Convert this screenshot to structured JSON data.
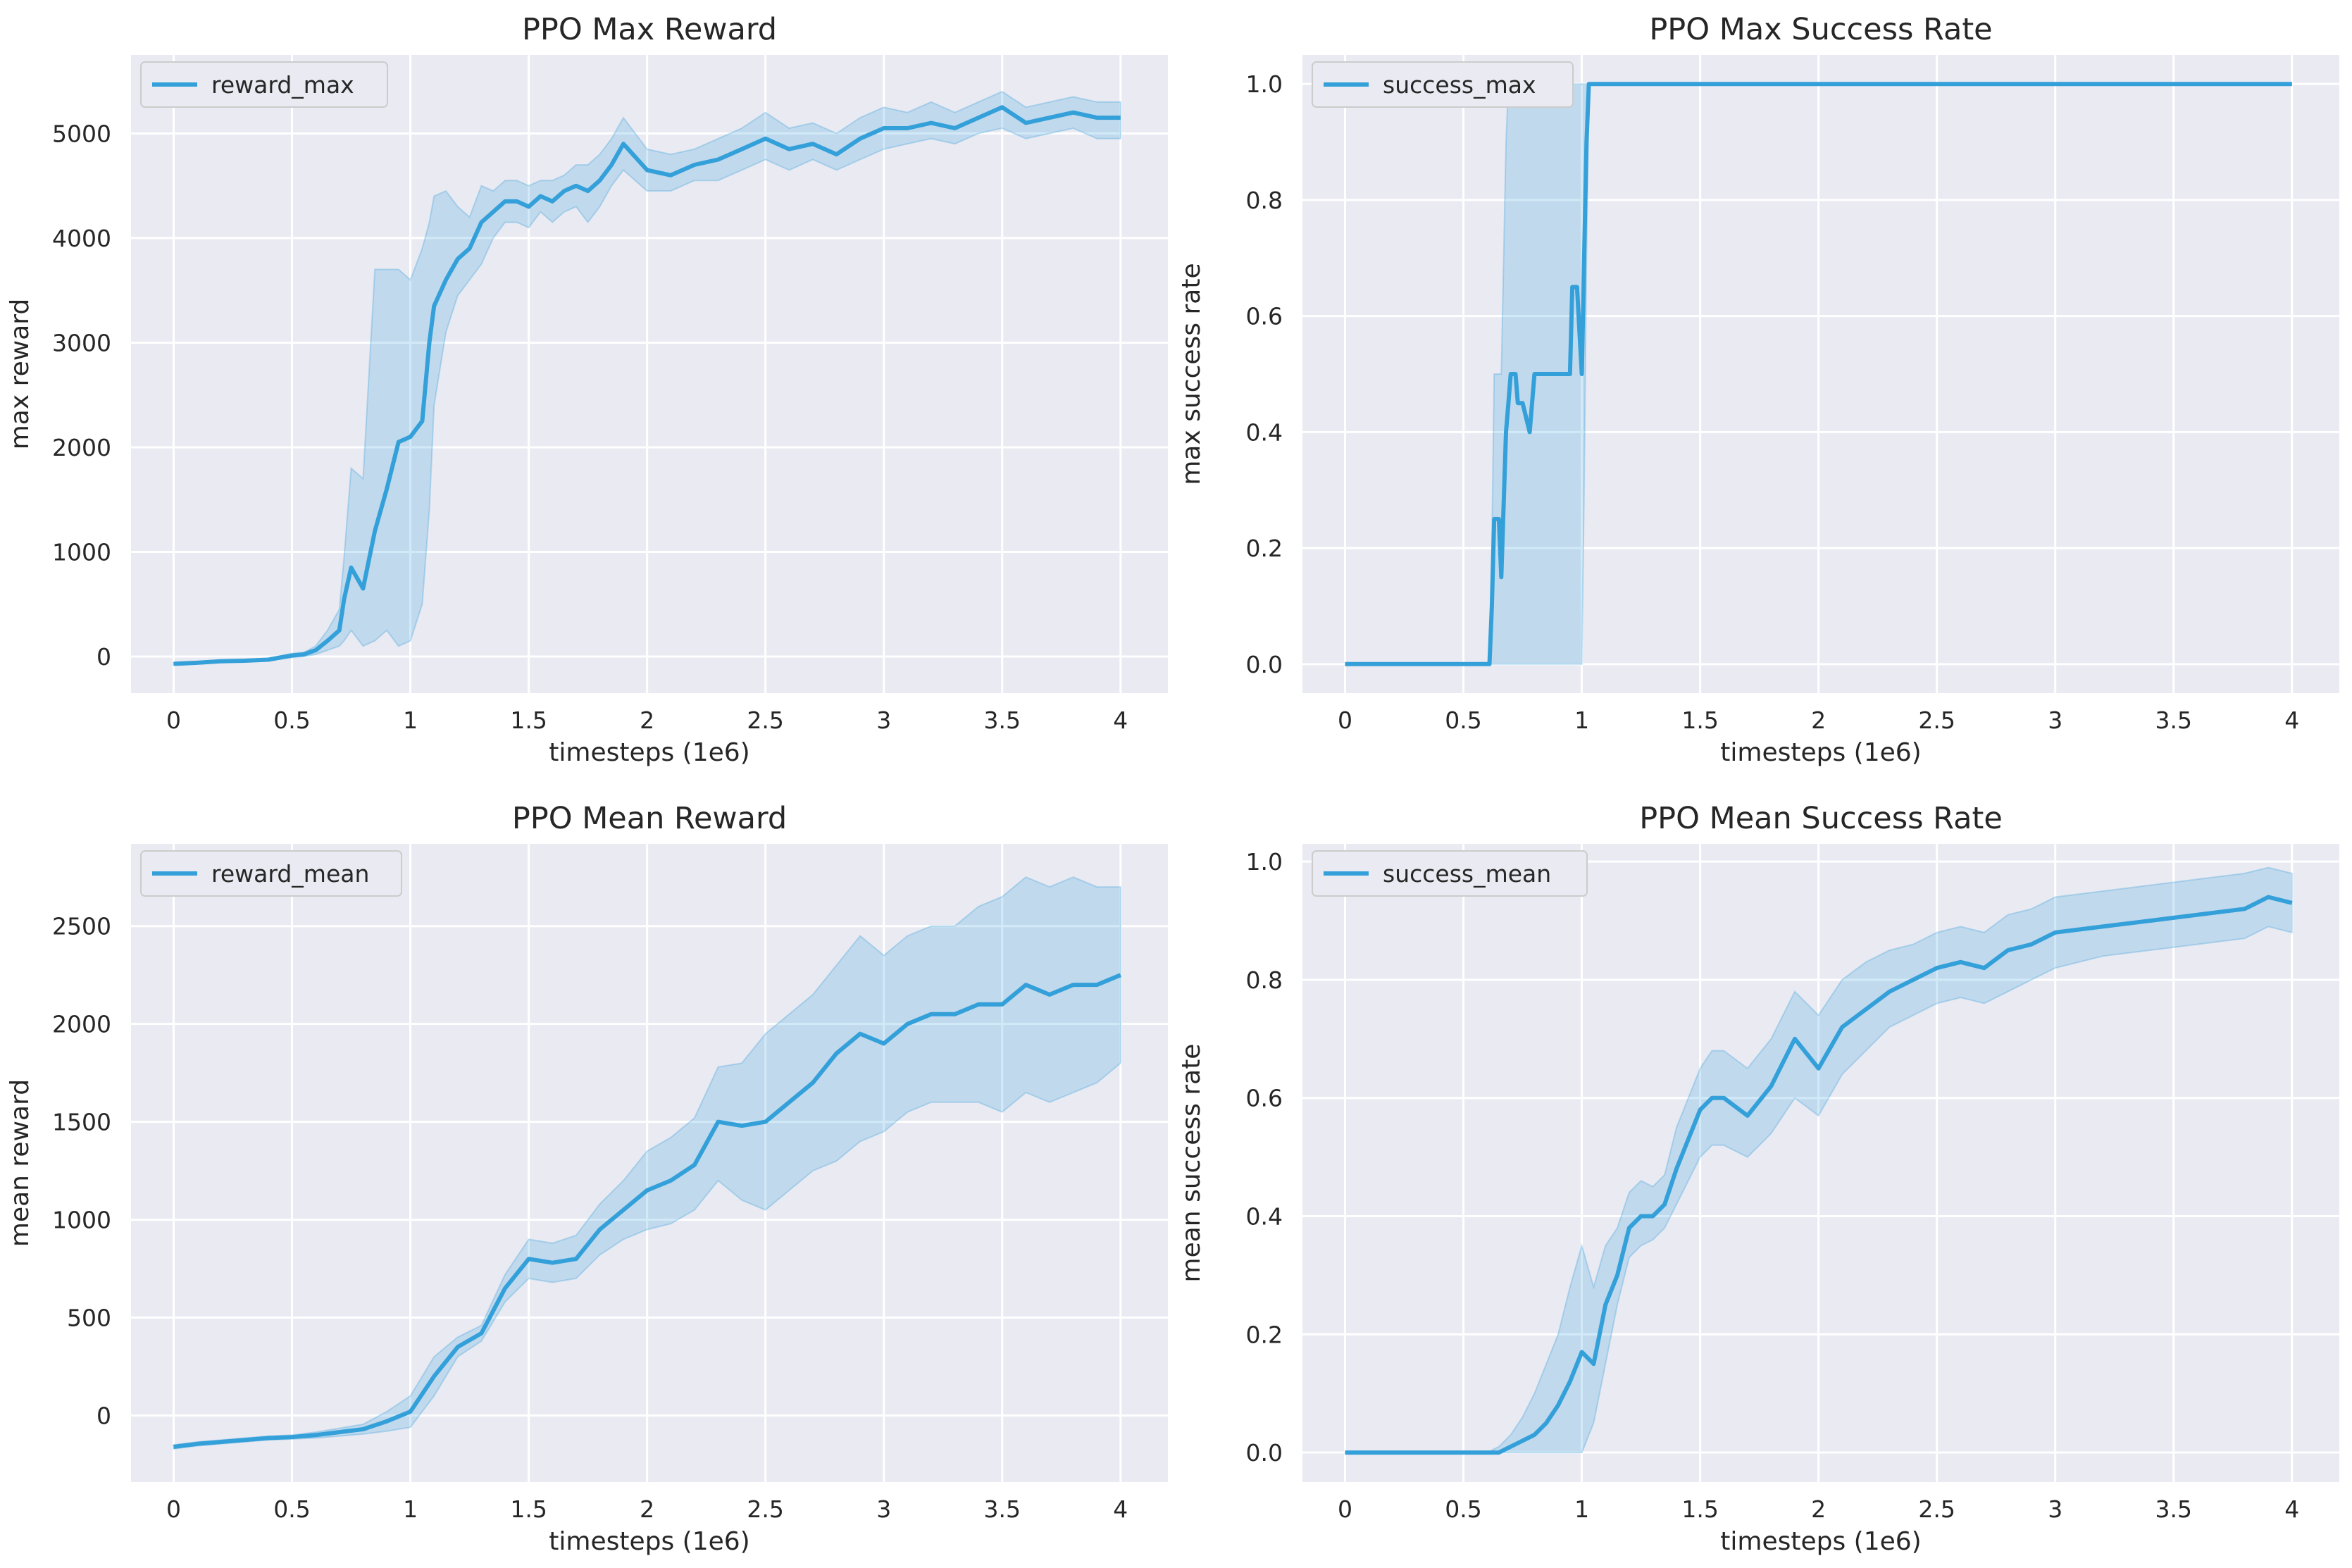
{
  "line_color": "#34a0d9",
  "band_color": "#34a0d9",
  "chart_data": [
    {
      "id": "max_reward",
      "type": "line",
      "title": "PPO Max Reward",
      "xlabel": "timesteps (1e6)",
      "ylabel": "max reward",
      "xlim": [
        -0.18,
        4.2
      ],
      "ylim": [
        -350,
        5750
      ],
      "xticks": [
        0,
        0.5,
        1,
        1.5,
        2,
        2.5,
        3,
        3.5,
        4
      ],
      "xtick_labels": [
        "0",
        "0.5",
        "1",
        "1.5",
        "2",
        "2.5",
        "3",
        "3.5",
        "4"
      ],
      "yticks": [
        0,
        1000,
        2000,
        3000,
        4000,
        5000
      ],
      "ytick_labels": [
        "0",
        "1000",
        "2000",
        "3000",
        "4000",
        "5000"
      ],
      "legend": "reward_max",
      "series": [
        {
          "name": "reward_max",
          "x": [
            0,
            0.1,
            0.2,
            0.3,
            0.4,
            0.5,
            0.55,
            0.6,
            0.65,
            0.7,
            0.72,
            0.75,
            0.8,
            0.85,
            0.9,
            0.95,
            1.0,
            1.05,
            1.08,
            1.1,
            1.15,
            1.2,
            1.25,
            1.3,
            1.35,
            1.4,
            1.45,
            1.5,
            1.55,
            1.6,
            1.65,
            1.7,
            1.75,
            1.8,
            1.85,
            1.9,
            2.0,
            2.1,
            2.2,
            2.3,
            2.4,
            2.5,
            2.6,
            2.7,
            2.8,
            2.9,
            3.0,
            3.1,
            3.2,
            3.3,
            3.4,
            3.5,
            3.6,
            3.7,
            3.8,
            3.9,
            4.0
          ],
          "y": [
            -70,
            -60,
            -45,
            -40,
            -30,
            10,
            20,
            60,
            150,
            250,
            550,
            850,
            650,
            1200,
            1600,
            2050,
            2100,
            2250,
            3000,
            3350,
            3600,
            3800,
            3900,
            4150,
            4250,
            4350,
            4350,
            4300,
            4400,
            4350,
            4450,
            4500,
            4450,
            4550,
            4700,
            4900,
            4650,
            4600,
            4700,
            4750,
            4850,
            4950,
            4850,
            4900,
            4800,
            4950,
            5050,
            5050,
            5100,
            5050,
            5150,
            5250,
            5100,
            5150,
            5200,
            5150,
            5150
          ],
          "lower": [
            -80,
            -70,
            -55,
            -50,
            -40,
            -10,
            0,
            20,
            60,
            100,
            150,
            250,
            100,
            150,
            250,
            100,
            150,
            500,
            1400,
            2400,
            3100,
            3450,
            3600,
            3750,
            4000,
            4150,
            4150,
            4100,
            4250,
            4150,
            4250,
            4300,
            4150,
            4300,
            4500,
            4650,
            4450,
            4450,
            4550,
            4550,
            4650,
            4750,
            4650,
            4750,
            4650,
            4750,
            4850,
            4900,
            4950,
            4900,
            5000,
            5050,
            4950,
            5000,
            5050,
            4950,
            4950
          ],
          "upper": [
            -60,
            -50,
            -35,
            -30,
            -20,
            30,
            40,
            100,
            250,
            450,
            950,
            1800,
            1700,
            3700,
            3700,
            3700,
            3600,
            3900,
            4150,
            4400,
            4450,
            4300,
            4200,
            4500,
            4450,
            4550,
            4550,
            4500,
            4550,
            4550,
            4600,
            4700,
            4700,
            4800,
            4950,
            5150,
            4850,
            4800,
            4850,
            4950,
            5050,
            5200,
            5050,
            5100,
            5000,
            5150,
            5250,
            5200,
            5300,
            5200,
            5300,
            5400,
            5250,
            5300,
            5350,
            5300,
            5300
          ]
        }
      ]
    },
    {
      "id": "max_success",
      "type": "line",
      "title": "PPO Max Success Rate",
      "xlabel": "timesteps (1e6)",
      "ylabel": "max success rate",
      "xlim": [
        -0.18,
        4.2
      ],
      "ylim": [
        -0.05,
        1.05
      ],
      "xticks": [
        0,
        0.5,
        1,
        1.5,
        2,
        2.5,
        3,
        3.5,
        4
      ],
      "xtick_labels": [
        "0",
        "0.5",
        "1",
        "1.5",
        "2",
        "2.5",
        "3",
        "3.5",
        "4"
      ],
      "yticks": [
        0,
        0.2,
        0.4,
        0.6,
        0.8,
        1.0
      ],
      "ytick_labels": [
        "0.0",
        "0.2",
        "0.4",
        "0.6",
        "0.8",
        "1.0"
      ],
      "legend": "success_max",
      "series": [
        {
          "name": "success_max",
          "x": [
            0,
            0.61,
            0.62,
            0.63,
            0.65,
            0.66,
            0.68,
            0.69,
            0.7,
            0.72,
            0.73,
            0.75,
            0.78,
            0.8,
            0.82,
            0.85,
            0.9,
            0.95,
            0.96,
            0.98,
            1.0,
            1.01,
            1.02,
            1.03,
            1.04,
            2.0,
            3.0,
            4.0
          ],
          "y": [
            0,
            0,
            0.1,
            0.25,
            0.25,
            0.15,
            0.4,
            0.45,
            0.5,
            0.5,
            0.45,
            0.45,
            0.4,
            0.5,
            0.5,
            0.5,
            0.5,
            0.5,
            0.65,
            0.65,
            0.5,
            0.7,
            0.9,
            1.0,
            1.0,
            1.0,
            1.0,
            1.0
          ],
          "lower": [
            0,
            0,
            0,
            0,
            0,
            0,
            0,
            0,
            0,
            0,
            0,
            0,
            0,
            0,
            0,
            0,
            0,
            0,
            0,
            0,
            0,
            0.3,
            0.7,
            1.0,
            1.0,
            1.0,
            1.0,
            1.0
          ],
          "upper": [
            0,
            0,
            0.2,
            0.5,
            0.5,
            0.5,
            0.9,
            1.0,
            1.0,
            1.0,
            1.0,
            1.0,
            1.0,
            1.0,
            1.0,
            1.0,
            1.0,
            1.0,
            1.0,
            1.0,
            1.0,
            1.0,
            1.0,
            1.0,
            1.0,
            1.0,
            1.0,
            1.0
          ]
        }
      ]
    },
    {
      "id": "mean_reward",
      "type": "line",
      "title": "PPO Mean Reward",
      "xlabel": "timesteps (1e6)",
      "ylabel": "mean reward",
      "xlim": [
        -0.18,
        4.2
      ],
      "ylim": [
        -340,
        2920
      ],
      "xticks": [
        0,
        0.5,
        1,
        1.5,
        2,
        2.5,
        3,
        3.5,
        4
      ],
      "xtick_labels": [
        "0",
        "0.5",
        "1",
        "1.5",
        "2",
        "2.5",
        "3",
        "3.5",
        "4"
      ],
      "yticks": [
        0,
        500,
        1000,
        1500,
        2000,
        2500
      ],
      "ytick_labels": [
        "0",
        "500",
        "1000",
        "1500",
        "2000",
        "2500"
      ],
      "legend": "reward_mean",
      "series": [
        {
          "name": "reward_mean",
          "x": [
            0,
            0.1,
            0.2,
            0.3,
            0.4,
            0.5,
            0.6,
            0.7,
            0.8,
            0.9,
            1.0,
            1.1,
            1.2,
            1.3,
            1.4,
            1.5,
            1.6,
            1.7,
            1.8,
            1.9,
            2.0,
            2.1,
            2.2,
            2.3,
            2.4,
            2.5,
            2.6,
            2.7,
            2.8,
            2.9,
            3.0,
            3.1,
            3.2,
            3.3,
            3.4,
            3.5,
            3.6,
            3.7,
            3.8,
            3.9,
            4.0
          ],
          "y": [
            -160,
            -145,
            -135,
            -125,
            -115,
            -110,
            -100,
            -85,
            -70,
            -30,
            20,
            200,
            350,
            420,
            650,
            800,
            780,
            800,
            950,
            1050,
            1150,
            1200,
            1280,
            1500,
            1480,
            1500,
            1600,
            1700,
            1850,
            1950,
            1900,
            2000,
            2050,
            2050,
            2100,
            2100,
            2200,
            2150,
            2200,
            2200,
            2250
          ],
          "lower": [
            -170,
            -155,
            -145,
            -135,
            -125,
            -120,
            -115,
            -105,
            -95,
            -80,
            -60,
            100,
            300,
            380,
            580,
            700,
            680,
            700,
            820,
            900,
            950,
            980,
            1050,
            1200,
            1100,
            1050,
            1150,
            1250,
            1300,
            1400,
            1450,
            1550,
            1600,
            1600,
            1600,
            1550,
            1650,
            1600,
            1650,
            1700,
            1800
          ],
          "upper": [
            -150,
            -135,
            -125,
            -115,
            -105,
            -100,
            -85,
            -65,
            -45,
            20,
            100,
            300,
            400,
            460,
            720,
            900,
            880,
            920,
            1080,
            1200,
            1350,
            1420,
            1520,
            1780,
            1800,
            1950,
            2050,
            2150,
            2300,
            2450,
            2350,
            2450,
            2500,
            2500,
            2600,
            2650,
            2750,
            2700,
            2750,
            2700,
            2700
          ]
        }
      ]
    },
    {
      "id": "mean_success",
      "type": "line",
      "title": "PPO Mean Success Rate",
      "xlabel": "timesteps (1e6)",
      "ylabel": "mean success rate",
      "xlim": [
        -0.18,
        4.2
      ],
      "ylim": [
        -0.05,
        1.03
      ],
      "xticks": [
        0,
        0.5,
        1,
        1.5,
        2,
        2.5,
        3,
        3.5,
        4
      ],
      "xtick_labels": [
        "0",
        "0.5",
        "1",
        "1.5",
        "2",
        "2.5",
        "3",
        "3.5",
        "4"
      ],
      "yticks": [
        0,
        0.2,
        0.4,
        0.6,
        0.8,
        1.0
      ],
      "ytick_labels": [
        "0.0",
        "0.2",
        "0.4",
        "0.6",
        "0.8",
        "1.0"
      ],
      "legend": "success_mean",
      "series": [
        {
          "name": "success_mean",
          "x": [
            0,
            0.55,
            0.6,
            0.65,
            0.7,
            0.75,
            0.8,
            0.85,
            0.9,
            0.95,
            1.0,
            1.05,
            1.1,
            1.15,
            1.2,
            1.25,
            1.3,
            1.35,
            1.4,
            1.45,
            1.5,
            1.55,
            1.6,
            1.7,
            1.8,
            1.9,
            2.0,
            2.1,
            2.2,
            2.3,
            2.4,
            2.5,
            2.6,
            2.7,
            2.8,
            2.9,
            3.0,
            3.2,
            3.4,
            3.6,
            3.8,
            3.9,
            4.0
          ],
          "y": [
            0,
            0,
            0,
            0,
            0.01,
            0.02,
            0.03,
            0.05,
            0.08,
            0.12,
            0.17,
            0.15,
            0.25,
            0.3,
            0.38,
            0.4,
            0.4,
            0.42,
            0.48,
            0.53,
            0.58,
            0.6,
            0.6,
            0.57,
            0.62,
            0.7,
            0.65,
            0.72,
            0.75,
            0.78,
            0.8,
            0.82,
            0.83,
            0.82,
            0.85,
            0.86,
            0.88,
            0.89,
            0.9,
            0.91,
            0.92,
            0.94,
            0.93
          ],
          "lower": [
            0,
            0,
            0,
            0,
            0,
            0,
            0,
            0,
            0,
            0,
            0,
            0.05,
            0.15,
            0.25,
            0.33,
            0.35,
            0.36,
            0.38,
            0.42,
            0.46,
            0.5,
            0.52,
            0.52,
            0.5,
            0.54,
            0.6,
            0.57,
            0.64,
            0.68,
            0.72,
            0.74,
            0.76,
            0.77,
            0.76,
            0.78,
            0.8,
            0.82,
            0.84,
            0.85,
            0.86,
            0.87,
            0.89,
            0.88
          ],
          "upper": [
            0,
            0,
            0,
            0.01,
            0.03,
            0.06,
            0.1,
            0.15,
            0.2,
            0.28,
            0.35,
            0.28,
            0.35,
            0.38,
            0.44,
            0.46,
            0.45,
            0.47,
            0.55,
            0.6,
            0.65,
            0.68,
            0.68,
            0.65,
            0.7,
            0.78,
            0.74,
            0.8,
            0.83,
            0.85,
            0.86,
            0.88,
            0.89,
            0.88,
            0.91,
            0.92,
            0.94,
            0.95,
            0.96,
            0.97,
            0.98,
            0.99,
            0.98
          ]
        }
      ]
    }
  ]
}
